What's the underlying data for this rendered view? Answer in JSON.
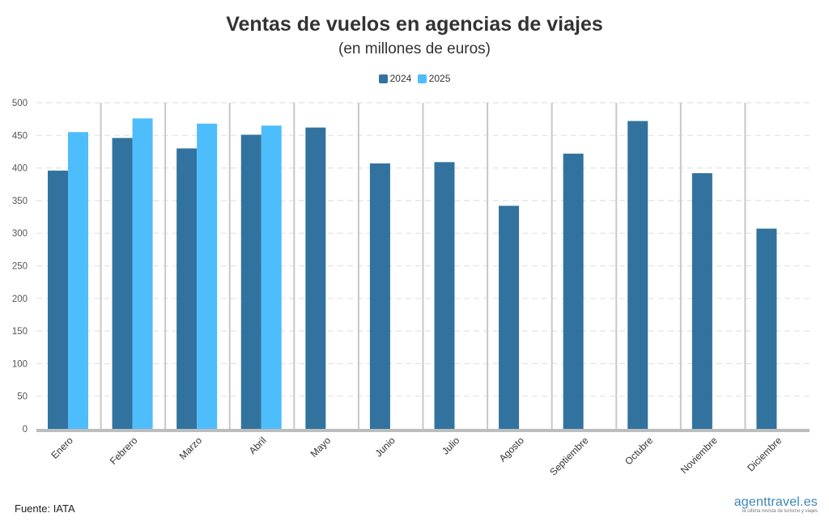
{
  "chart_data": {
    "type": "bar",
    "title": "Ventas de vuelos en agencias de viajes",
    "subtitle": "(en millones de euros)",
    "categories": [
      "Enero",
      "Febrero",
      "Marzo",
      "Abril",
      "Mayo",
      "Junio",
      "Julio",
      "Agosto",
      "Septiembre",
      "Octubre",
      "Noviembre",
      "Diciembre"
    ],
    "series": [
      {
        "name": "2024",
        "color": "#31739e",
        "values": [
          396,
          446,
          430,
          451,
          462,
          407,
          409,
          342,
          422,
          472,
          392,
          307
        ]
      },
      {
        "name": "2025",
        "color": "#4dbdfc",
        "values": [
          455,
          476,
          468,
          465,
          null,
          null,
          null,
          null,
          null,
          null,
          null,
          null
        ]
      }
    ],
    "ylim": [
      0,
      500
    ],
    "yticks": [
      0,
      50,
      100,
      150,
      200,
      250,
      300,
      350,
      400,
      450,
      500
    ],
    "xlabel": "",
    "ylabel": "",
    "legend_position": "top-center",
    "grid": true
  },
  "footer": {
    "source": "Fuente: IATA",
    "brand": "agenttravel.es",
    "brand_tagline": "la última revista de turismo y viajes"
  }
}
